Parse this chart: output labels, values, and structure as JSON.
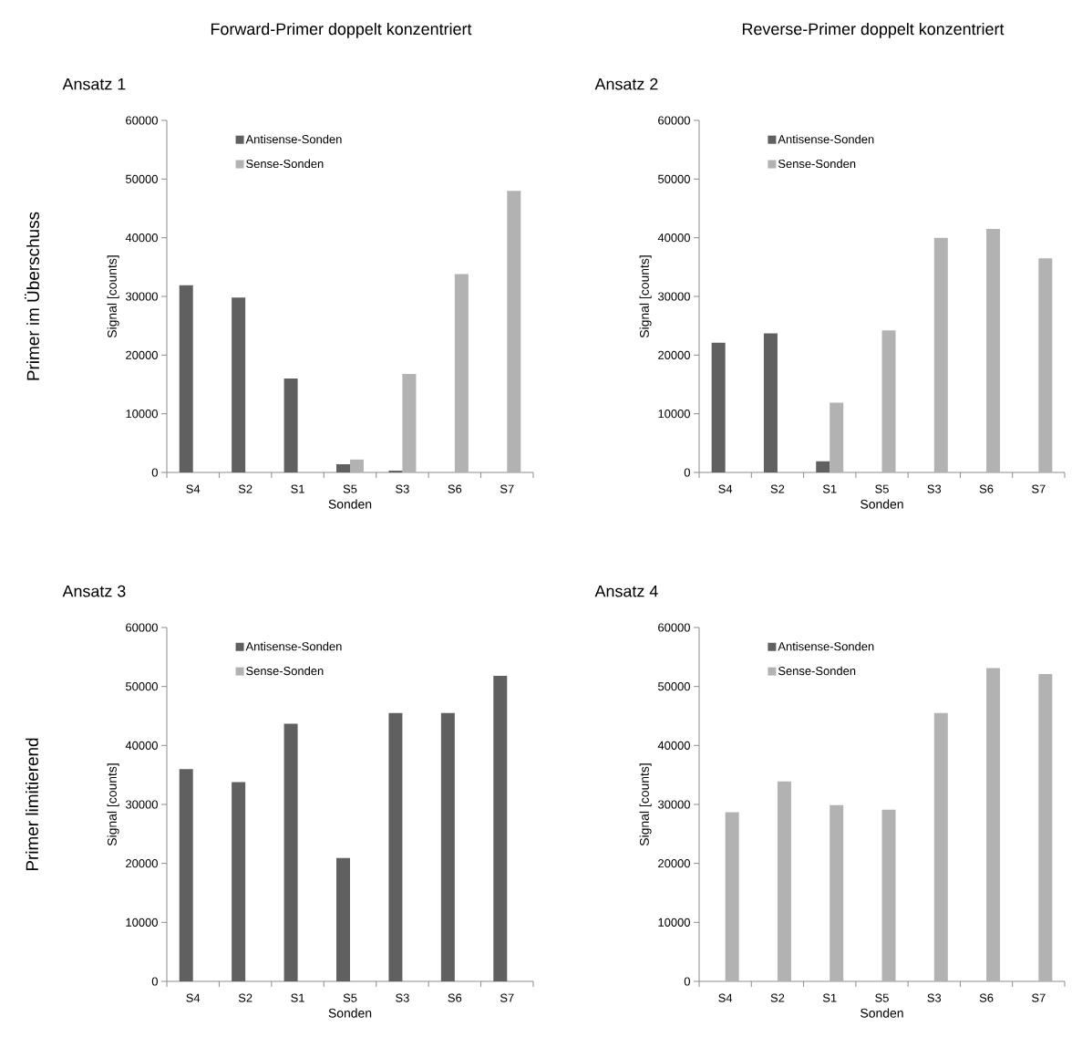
{
  "chart_data": [
    {
      "type": "bar",
      "title": "Ansatz 1",
      "xlabel": "Sonden",
      "ylabel": "Signal [counts]",
      "annotations": [
        "Forward-Primer doppelt konzentriert",
        "Primer im Überschuss"
      ],
      "categories": [
        "S4",
        "S2",
        "S1",
        "S5",
        "S3",
        "S6",
        "S7"
      ],
      "series": [
        {
          "name": "Antisense-Sonden",
          "color": "#606060",
          "values": [
            31900,
            29800,
            16000,
            1400,
            300,
            0,
            0
          ]
        },
        {
          "name": "Sense-Sonden",
          "color": "#b2b2b2",
          "values": [
            0,
            0,
            null,
            2200,
            16800,
            33800,
            48000
          ]
        }
      ],
      "ylim": [
        0,
        60000
      ],
      "yticks": [
        0,
        10000,
        20000,
        30000,
        40000,
        50000,
        60000
      ],
      "legend": "top left"
    },
    {
      "type": "bar",
      "title": "Ansatz 2",
      "xlabel": "Sonden",
      "ylabel": "Signal [counts]",
      "annotations": [
        "Reverse-Primer doppelt konzentriert"
      ],
      "categories": [
        "S4",
        "S2",
        "S1",
        "S5",
        "S3",
        "S6",
        "S7"
      ],
      "series": [
        {
          "name": "Antisense-Sonden",
          "color": "#606060",
          "values": [
            22100,
            23700,
            1900,
            0,
            0,
            0,
            0
          ]
        },
        {
          "name": "Sense-Sonden",
          "color": "#b2b2b2",
          "values": [
            0,
            0,
            11900,
            24200,
            40000,
            41500,
            36500
          ]
        }
      ],
      "ylim": [
        0,
        60000
      ],
      "yticks": [
        0,
        10000,
        20000,
        30000,
        40000,
        50000,
        60000
      ],
      "legend": "top left"
    },
    {
      "type": "bar",
      "title": "Ansatz 3",
      "xlabel": "Sonden",
      "ylabel": "Signal [counts]",
      "annotations": [
        "Primer limitierend"
      ],
      "categories": [
        "S4",
        "S2",
        "S1",
        "S5",
        "S3",
        "S6",
        "S7"
      ],
      "series": [
        {
          "name": "Antisense-Sonden",
          "color": "#606060",
          "values": [
            36000,
            33800,
            43700,
            20900,
            45500,
            45500,
            51800
          ]
        },
        {
          "name": "Sense-Sonden",
          "color": "#b2b2b2",
          "values": [
            0,
            0,
            0,
            0,
            0,
            0,
            0
          ]
        }
      ],
      "ylim": [
        0,
        60000
      ],
      "yticks": [
        0,
        10000,
        20000,
        30000,
        40000,
        50000,
        60000
      ],
      "legend": "top left"
    },
    {
      "type": "bar",
      "title": "Ansatz 4",
      "xlabel": "Sonden",
      "ylabel": "Signal [counts]",
      "categories": [
        "S4",
        "S2",
        "S1",
        "S5",
        "S3",
        "S6",
        "S7"
      ],
      "series": [
        {
          "name": "Antisense-Sonden",
          "color": "#606060",
          "values": [
            0,
            0,
            0,
            0,
            0,
            0,
            0
          ]
        },
        {
          "name": "Sense-Sonden",
          "color": "#b2b2b2",
          "values": [
            28700,
            33900,
            29900,
            29100,
            45500,
            53100,
            52100
          ]
        }
      ],
      "ylim": [
        0,
        60000
      ],
      "yticks": [
        0,
        10000,
        20000,
        30000,
        40000,
        50000,
        60000
      ],
      "legend": "top left"
    }
  ]
}
